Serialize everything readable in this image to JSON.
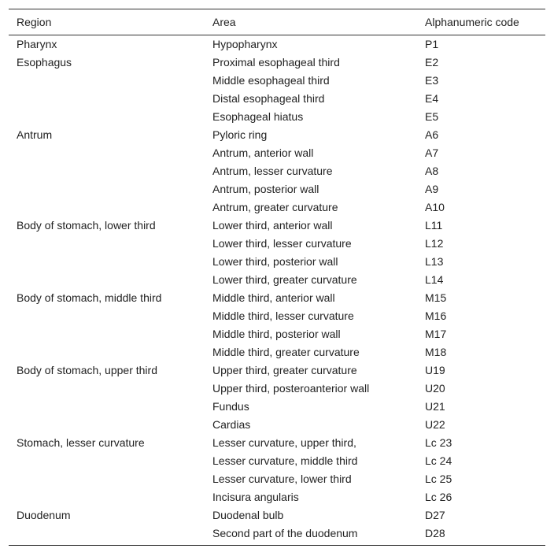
{
  "table": {
    "header": [
      "Region",
      "Area",
      "Alphanumeric code"
    ],
    "groups": [
      {
        "region": "Pharynx",
        "areas": [
          [
            "Hypopharynx",
            "P1"
          ]
        ]
      },
      {
        "region": "Esophagus",
        "areas": [
          [
            "Proximal esophageal third",
            "E2"
          ],
          [
            "Middle esophageal third",
            "E3"
          ],
          [
            "Distal esophageal third",
            "E4"
          ],
          [
            "Esophageal hiatus",
            "E5"
          ]
        ]
      },
      {
        "region": "Antrum",
        "areas": [
          [
            "Pyloric ring",
            "A6"
          ],
          [
            "Antrum, anterior wall",
            "A7"
          ],
          [
            "Antrum, lesser curvature",
            "A8"
          ],
          [
            "Antrum, posterior wall",
            "A9"
          ],
          [
            "Antrum, greater curvature",
            "A10"
          ]
        ]
      },
      {
        "region": "Body of stomach, lower third",
        "areas": [
          [
            "Lower third, anterior wall",
            "L11"
          ],
          [
            "Lower third, lesser curvature",
            "L12"
          ],
          [
            "Lower third, posterior wall",
            "L13"
          ],
          [
            "Lower third, greater curvature",
            "L14"
          ]
        ]
      },
      {
        "region": "Body of stomach, middle third",
        "areas": [
          [
            "Middle third, anterior wall",
            "M15"
          ],
          [
            "Middle third, lesser curvature",
            "M16"
          ],
          [
            "Middle third, posterior wall",
            "M17"
          ],
          [
            "Middle third, greater curvature",
            "M18"
          ]
        ]
      },
      {
        "region": "Body of stomach, upper third",
        "areas": [
          [
            "Upper third, greater curvature",
            "U19"
          ],
          [
            "Upper third, posteroanterior wall",
            "U20"
          ],
          [
            "Fundus",
            "U21"
          ],
          [
            "Cardias",
            "U22"
          ]
        ]
      },
      {
        "region": "Stomach, lesser curvature",
        "areas": [
          [
            "Lesser curvature, upper third,",
            "Lc 23"
          ],
          [
            "Lesser curvature, middle third",
            "Lc 24"
          ],
          [
            "Lesser curvature, lower third",
            "Lc 25"
          ],
          [
            "Incisura angularis",
            "Lc 26"
          ]
        ]
      },
      {
        "region": "Duodenum",
        "areas": [
          [
            "Duodenal bulb",
            "D27"
          ],
          [
            "Second part of the duodenum",
            "D28"
          ]
        ]
      }
    ]
  }
}
